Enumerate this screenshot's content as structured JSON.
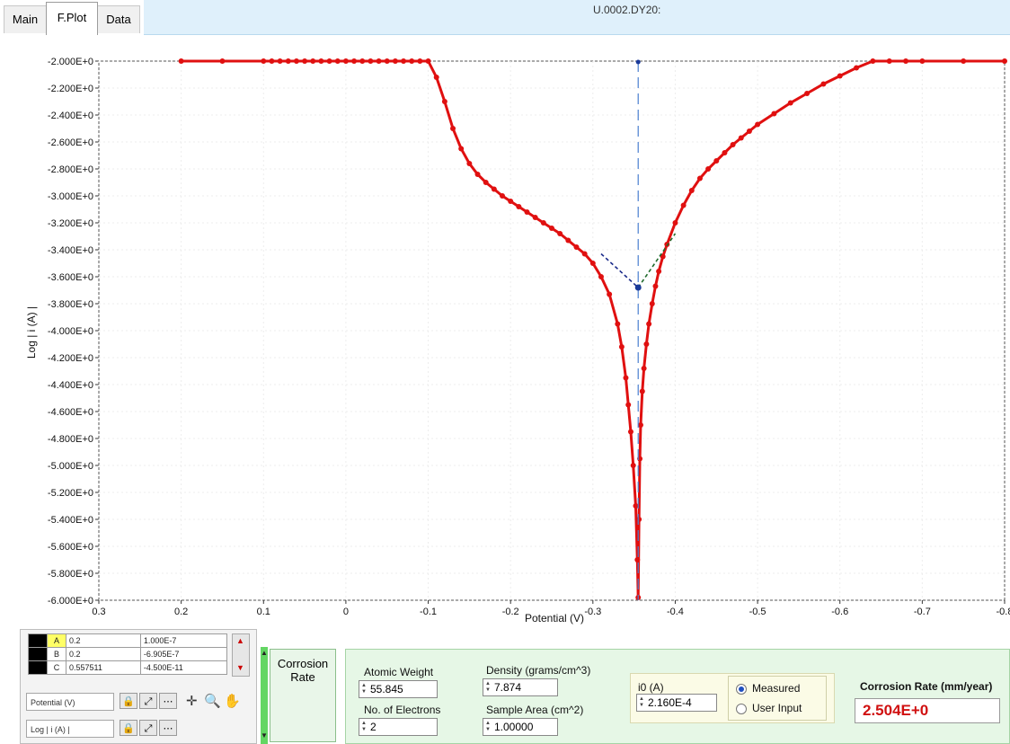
{
  "tabs": [
    {
      "label": "Main"
    },
    {
      "label": "F.Plot"
    },
    {
      "label": "Data"
    }
  ],
  "title_text": "U.0002.DY20:",
  "chart_data": {
    "type": "scatter",
    "xlabel": "Potential (V)",
    "ylabel": "Log | i (A) |",
    "xlim": [
      0.3,
      -0.8
    ],
    "ylim": [
      -6.0,
      -2.0
    ],
    "x_ticks": [
      "0.3",
      "0.2",
      "0.1",
      "0",
      "-0.1",
      "-0.2",
      "-0.3",
      "-0.4",
      "-0.5",
      "-0.6",
      "-0.7",
      "-0.8"
    ],
    "y_ticks": [
      "-2.000E+0",
      "-2.200E+0",
      "-2.400E+0",
      "-2.600E+0",
      "-2.800E+0",
      "-3.000E+0",
      "-3.200E+0",
      "-3.400E+0",
      "-3.600E+0",
      "-3.800E+0",
      "-4.000E+0",
      "-4.200E+0",
      "-4.400E+0",
      "-4.600E+0",
      "-4.800E+0",
      "-5.000E+0",
      "-5.200E+0",
      "-5.400E+0",
      "-5.600E+0",
      "-5.800E+0",
      "-6.000E+0"
    ],
    "series": [
      {
        "color": "#e01010",
        "x": [
          0.2,
          0.15,
          0.1,
          0.09,
          0.08,
          0.07,
          0.06,
          0.05,
          0.04,
          0.03,
          0.02,
          0.01,
          0.0,
          -0.01,
          -0.02,
          -0.03,
          -0.04,
          -0.05,
          -0.06,
          -0.07,
          -0.08,
          -0.09,
          -0.1,
          -0.11,
          -0.12,
          -0.13,
          -0.14,
          -0.15,
          -0.16,
          -0.17,
          -0.18,
          -0.19,
          -0.2,
          -0.21,
          -0.22,
          -0.23,
          -0.24,
          -0.25,
          -0.26,
          -0.27,
          -0.28,
          -0.29,
          -0.3,
          -0.31,
          -0.32,
          -0.33,
          -0.335,
          -0.34,
          -0.343,
          -0.346,
          -0.349,
          -0.352,
          -0.354,
          -0.355,
          -0.356,
          -0.357,
          -0.358,
          -0.36,
          -0.362,
          -0.365,
          -0.368,
          -0.372,
          -0.376,
          -0.38,
          -0.385,
          -0.39,
          -0.4,
          -0.41,
          -0.42,
          -0.43,
          -0.44,
          -0.45,
          -0.46,
          -0.47,
          -0.48,
          -0.49,
          -0.5,
          -0.52,
          -0.54,
          -0.56,
          -0.58,
          -0.6,
          -0.62,
          -0.64,
          -0.66,
          -0.68,
          -0.7,
          -0.75,
          -0.8
        ],
        "y": [
          -2.0,
          -2.0,
          -2.0,
          -2.0,
          -2.0,
          -2.0,
          -2.0,
          -2.0,
          -2.0,
          -2.0,
          -2.0,
          -2.0,
          -2.0,
          -2.0,
          -2.0,
          -2.0,
          -2.0,
          -2.0,
          -2.0,
          -2.0,
          -2.0,
          -2.0,
          -2.0,
          -2.12,
          -2.3,
          -2.5,
          -2.65,
          -2.76,
          -2.84,
          -2.9,
          -2.95,
          -3.0,
          -3.04,
          -3.08,
          -3.12,
          -3.16,
          -3.2,
          -3.24,
          -3.28,
          -3.33,
          -3.38,
          -3.43,
          -3.5,
          -3.6,
          -3.73,
          -3.95,
          -4.12,
          -4.35,
          -4.55,
          -4.75,
          -5.0,
          -5.3,
          -5.7,
          -5.98,
          -5.4,
          -4.95,
          -4.7,
          -4.45,
          -4.28,
          -4.1,
          -3.95,
          -3.8,
          -3.67,
          -3.56,
          -3.45,
          -3.36,
          -3.2,
          -3.07,
          -2.96,
          -2.87,
          -2.8,
          -2.74,
          -2.68,
          -2.62,
          -2.57,
          -2.52,
          -2.47,
          -2.39,
          -2.31,
          -2.24,
          -2.17,
          -2.11,
          -2.05,
          -2.0,
          -2.0,
          -2.0,
          -2.0,
          -2.0,
          -2.0
        ]
      }
    ],
    "tafel_left": {
      "x": [
        -0.31,
        -0.355
      ],
      "y": [
        -3.43,
        -3.68
      ]
    },
    "tafel_right": {
      "x": [
        -0.355,
        -0.4
      ],
      "y": [
        -3.68,
        -3.28
      ]
    },
    "vertical_line_x": -0.355,
    "intersection": {
      "x": -0.355,
      "y": -3.68
    }
  },
  "cursors": [
    {
      "label": "A",
      "x": "0.2",
      "y": "1.000E-7"
    },
    {
      "label": "B",
      "x": "0.2",
      "y": "-6.905E-7"
    },
    {
      "label": "C",
      "x": "0.557511",
      "y": "-4.500E-11"
    }
  ],
  "axis_fields": {
    "x_axis": "Potential (V)",
    "y_axis": "Log | i (A) |"
  },
  "corrosion_tab_label": "Corrosion Rate",
  "fields": {
    "atomic_weight_label": "Atomic Weight",
    "atomic_weight_value": "55.845",
    "density_label": "Density (grams/cm^3)",
    "density_value": "7.874",
    "electrons_label": "No. of Electrons",
    "electrons_value": "2",
    "area_label": "Sample Area (cm^2)",
    "area_value": "1.00000",
    "i0_label": "i0 (A)",
    "i0_value": "2.160E-4",
    "measured_label": "Measured",
    "user_input_label": "User Input",
    "rate_label": "Corrosion Rate (mm/year)",
    "rate_value": "2.504E+0"
  }
}
